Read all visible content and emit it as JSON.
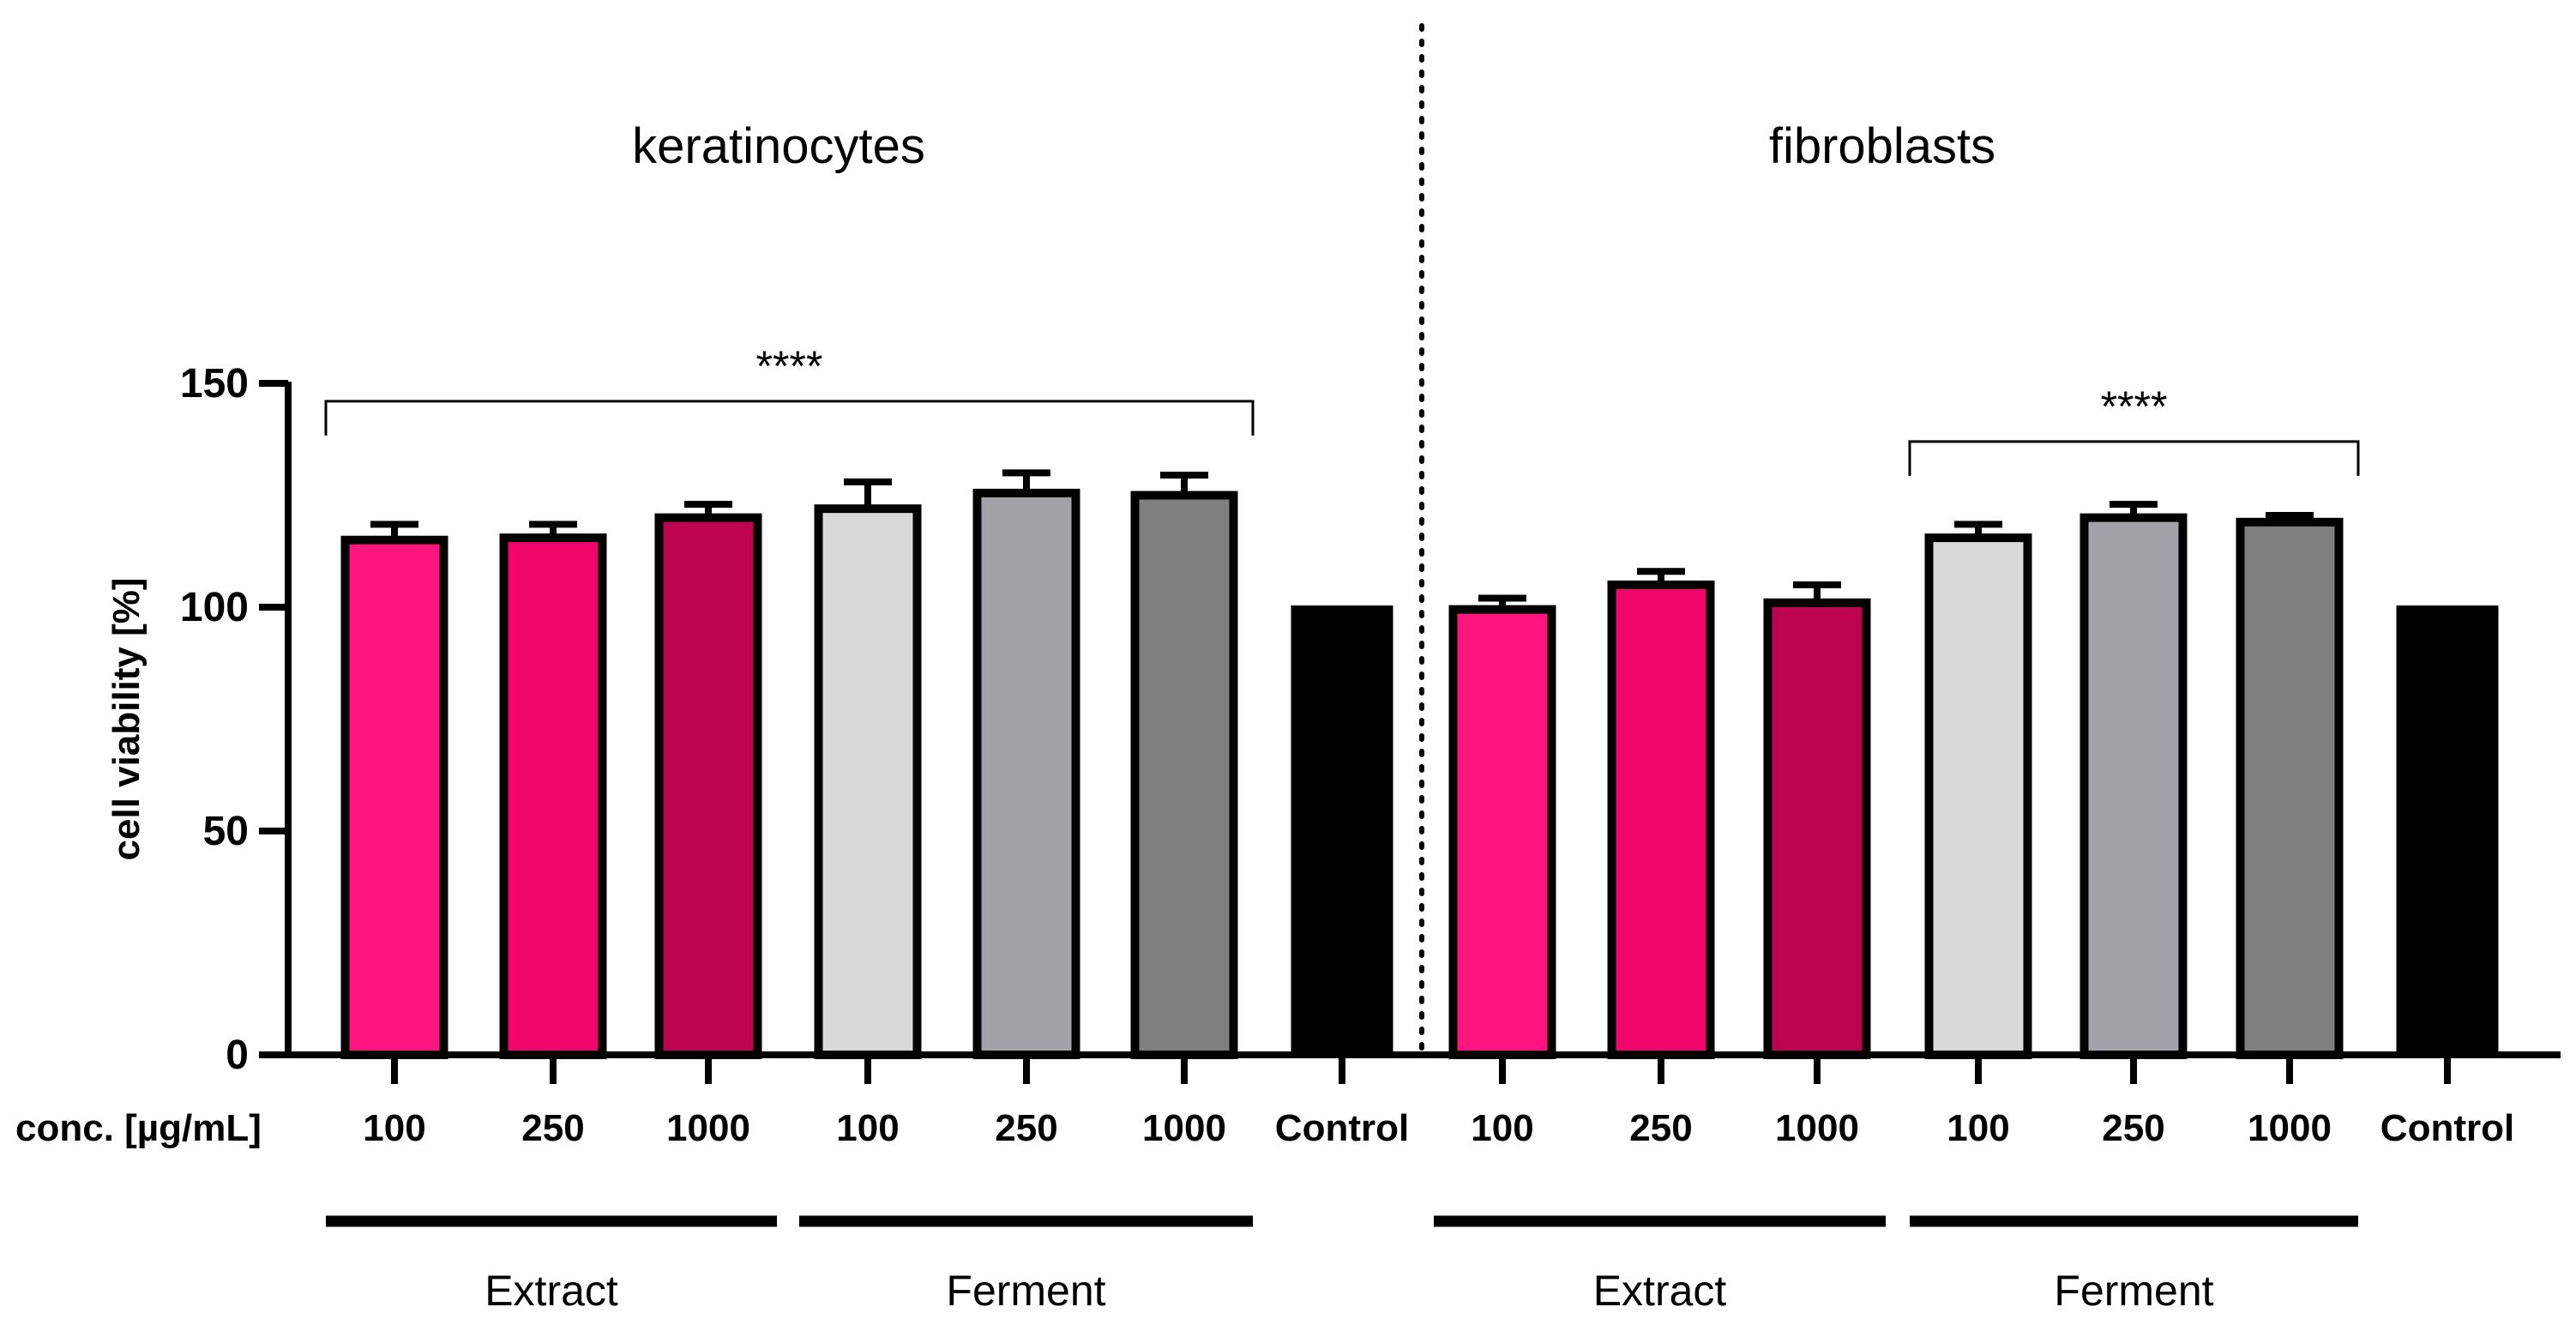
{
  "chart_data": {
    "type": "bar",
    "ylabel": "cell viability [%]",
    "xlabel_row": "conc. [µg/mL]",
    "ylim": [
      0,
      150
    ],
    "yticks": [
      0,
      50,
      100,
      150
    ],
    "panels": [
      {
        "title": "keratinocytes",
        "categories": [
          "100",
          "250",
          "1000",
          "100",
          "250",
          "1000",
          "Control"
        ],
        "groups": [
          {
            "name": "Extract",
            "start": 0,
            "end": 2
          },
          {
            "name": "Ferment",
            "start": 3,
            "end": 5
          }
        ],
        "values": [
          115,
          115.5,
          120,
          122,
          125.5,
          125,
          100
        ],
        "errors": [
          3.5,
          3,
          3,
          6,
          4.5,
          4.5,
          0
        ],
        "colors": [
          "#ff1480",
          "#f0066a",
          "#bc044e",
          "#d9d9d9",
          "#a3a2a8",
          "#7f7f7f",
          "#000000"
        ],
        "significance": {
          "label": "****",
          "from": 0,
          "to": 5,
          "level": 146
        }
      },
      {
        "title": "fibroblasts",
        "categories": [
          "100",
          "250",
          "1000",
          "100",
          "250",
          "1000",
          "Control"
        ],
        "groups": [
          {
            "name": "Extract",
            "start": 0,
            "end": 2
          },
          {
            "name": "Ferment",
            "start": 3,
            "end": 5
          }
        ],
        "values": [
          99.5,
          105,
          101,
          115.5,
          120,
          119,
          100
        ],
        "errors": [
          2.5,
          3,
          4,
          3,
          3,
          1.5,
          0
        ],
        "colors": [
          "#ff1480",
          "#f0066a",
          "#bc044e",
          "#d9d9d9",
          "#a3a2a8",
          "#7f7f7f",
          "#000000"
        ],
        "significance": {
          "label": "****",
          "from": 3,
          "to": 5,
          "level": 137
        }
      }
    ]
  }
}
